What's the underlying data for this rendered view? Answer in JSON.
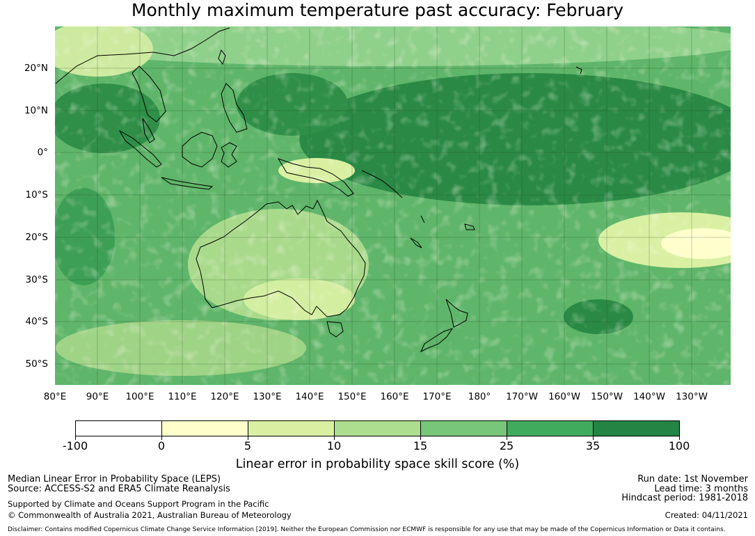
{
  "title": "Monthly maximum temperature past accuracy: February",
  "lat_labels": [
    "20°N",
    "10°N",
    "0°",
    "10°S",
    "20°S",
    "30°S",
    "40°S",
    "50°S"
  ],
  "lon_labels": [
    "80°E",
    "90°E",
    "100°E",
    "110°E",
    "120°E",
    "130°E",
    "140°E",
    "150°E",
    "160°E",
    "170°E",
    "180°",
    "170°W",
    "160°W",
    "150°W",
    "140°W",
    "130°W"
  ],
  "colorbar": {
    "ticks": [
      "-100",
      "0",
      "5",
      "10",
      "15",
      "25",
      "35",
      "100"
    ],
    "colors": [
      "#ffffff",
      "#ffffcc",
      "#d9f0a3",
      "#addd8e",
      "#78c679",
      "#41ab5d",
      "#238443"
    ],
    "label": "Linear error in probability space skill score (%)"
  },
  "footer": {
    "left_line1": "Median Linear Error in Probability Space (LEPS)",
    "left_line2": "Source: ACCESS-S2 and ERA5 Climate Reanalysis",
    "left_line3": "Supported by Climate and Oceans Support Program in the Pacific",
    "left_line4": "© Commonwealth of Australia 2021, Australian Bureau of Meteorology",
    "right_line1": "Run date: 1st November",
    "right_line2": "Lead time: 3 months",
    "right_line3": "Hindcast period: 1981-2018",
    "right_line4": "Created: 04/11/2021",
    "disclaimer": "Disclaimer: Contains modified Copernicus Climate Change Service Information [2019]. Neither the European Commission nor ECMWF is responsible for any use that may be made of the Copernicus Information or Data it contains."
  }
}
